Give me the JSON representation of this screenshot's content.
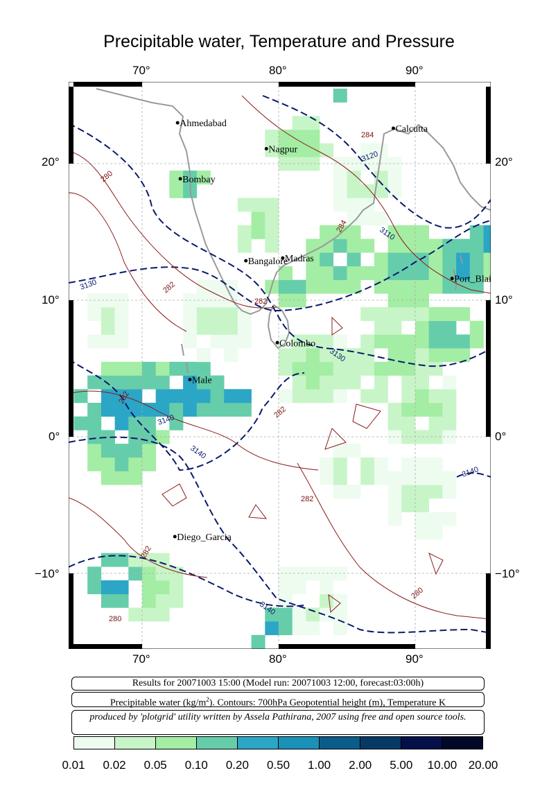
{
  "title": "Precipitable water, Temperature and Pressure",
  "map": {
    "lon_range": [
      65,
      96
    ],
    "lat_range": [
      -15.5,
      26
    ],
    "lon_ticks": [
      "70°",
      "80°",
      "90°"
    ],
    "lat_ticks": [
      "20°",
      "10°",
      "0°",
      "−10°"
    ],
    "cities": [
      {
        "name": "Ahmedabad",
        "lon": 72.6,
        "lat": 23.0
      },
      {
        "name": "Calcutta",
        "lon": 88.4,
        "lat": 22.6
      },
      {
        "name": "Nagpur",
        "lon": 79.1,
        "lat": 21.1
      },
      {
        "name": "Bombay",
        "lon": 72.8,
        "lat": 18.9
      },
      {
        "name": "Madras",
        "lon": 80.3,
        "lat": 13.1
      },
      {
        "name": "Bangalore",
        "lon": 77.6,
        "lat": 12.9
      },
      {
        "name": "Port_Blair",
        "lon": 92.7,
        "lat": 11.6
      },
      {
        "name": "Colombo",
        "lon": 79.9,
        "lat": 6.9
      },
      {
        "name": "Male",
        "lon": 73.5,
        "lat": 4.2
      },
      {
        "name": "Diego_Garcia",
        "lon": 72.4,
        "lat": -7.3
      }
    ],
    "contour_labels_geopotential": [
      "3120",
      "3110",
      "3130",
      "3130",
      "3140",
      "3140",
      "3140",
      "3140"
    ],
    "contour_labels_temperature": [
      "280",
      "284",
      "284",
      "282",
      "282",
      "282",
      "282",
      "282",
      "282",
      "280",
      "280"
    ]
  },
  "info": {
    "line1": "Results for 20071003 15:00 (Model run: 20071003 12:00, forecast:03:00h)",
    "line2_prefix": "Precipitable water (kg/m",
    "line2_sup": "2",
    "line2_suffix": ").  Contours: 700hPa Geopotential height (m), Temperature K",
    "line3": "produced by 'plotgrid' utility written by Assela Pathirana, 2007 using free and open source tools."
  },
  "colorbar": {
    "ticks": [
      "0.01",
      "0.02",
      "0.05",
      "0.10",
      "0.20",
      "0.50",
      "1.00",
      "2.00",
      "5.00",
      "10.00",
      "20.00"
    ],
    "colors": [
      "#eefcf0",
      "#c8f5c8",
      "#a4eda4",
      "#66cdaa",
      "#2ba6c6",
      "#1991b8",
      "#0a5c8a",
      "#053a66",
      "#04104a",
      "#020828"
    ]
  }
}
